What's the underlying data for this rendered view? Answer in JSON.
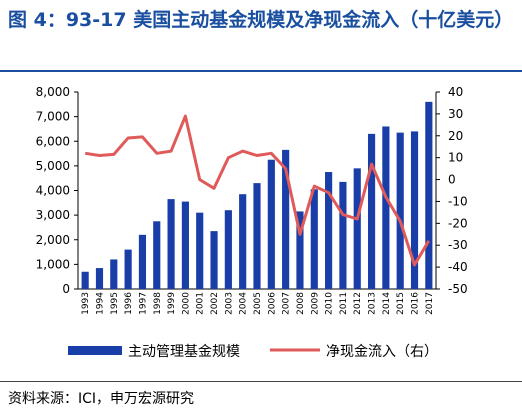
{
  "title": "图 4：93-17 美国主动基金规模及净现金流入（十亿美元）",
  "source": "资料来源：ICI，申万宏源研究",
  "colors": {
    "title": "#1a4fa0",
    "bar": "#1a3ea8",
    "line": "#e05a5a"
  },
  "chart_data": {
    "type": "bar",
    "categories": [
      "1993",
      "1994",
      "1995",
      "1996",
      "1997",
      "1998",
      "1999",
      "2000",
      "2001",
      "2002",
      "2003",
      "2004",
      "2005",
      "2006",
      "2007",
      "2008",
      "2009",
      "2010",
      "2011",
      "2012",
      "2013",
      "2014",
      "2015",
      "2016",
      "2017"
    ],
    "y_ticks": [
      "0",
      "1,000",
      "2,000",
      "3,000",
      "4,000",
      "5,000",
      "6,000",
      "7,000",
      "8,000"
    ],
    "y2_ticks": [
      "40",
      "30",
      "20",
      "10",
      "0",
      "-10",
      "-20",
      "-30",
      "-40",
      "-50"
    ],
    "ylim": [
      0,
      8000
    ],
    "y2lim": [
      -50,
      40
    ],
    "grid": false,
    "legend_position": "bottom",
    "series": [
      {
        "name": "主动管理基金规模",
        "type": "bar",
        "axis": "left",
        "values": [
          700,
          850,
          1200,
          1600,
          2200,
          2750,
          3650,
          3550,
          3100,
          2350,
          3200,
          3850,
          4300,
          5250,
          5650,
          3150,
          4050,
          4750,
          4350,
          4900,
          6300,
          6600,
          6350,
          6400,
          7600
        ]
      },
      {
        "name": "净现金流入（右）",
        "type": "line",
        "axis": "right",
        "values": [
          12,
          11,
          11.5,
          19,
          19.5,
          12,
          13,
          29,
          0,
          -4,
          10,
          13,
          11,
          12,
          5,
          -25,
          -3,
          -6,
          -16,
          -18,
          7,
          -8,
          -19,
          -39,
          -28
        ]
      }
    ]
  }
}
